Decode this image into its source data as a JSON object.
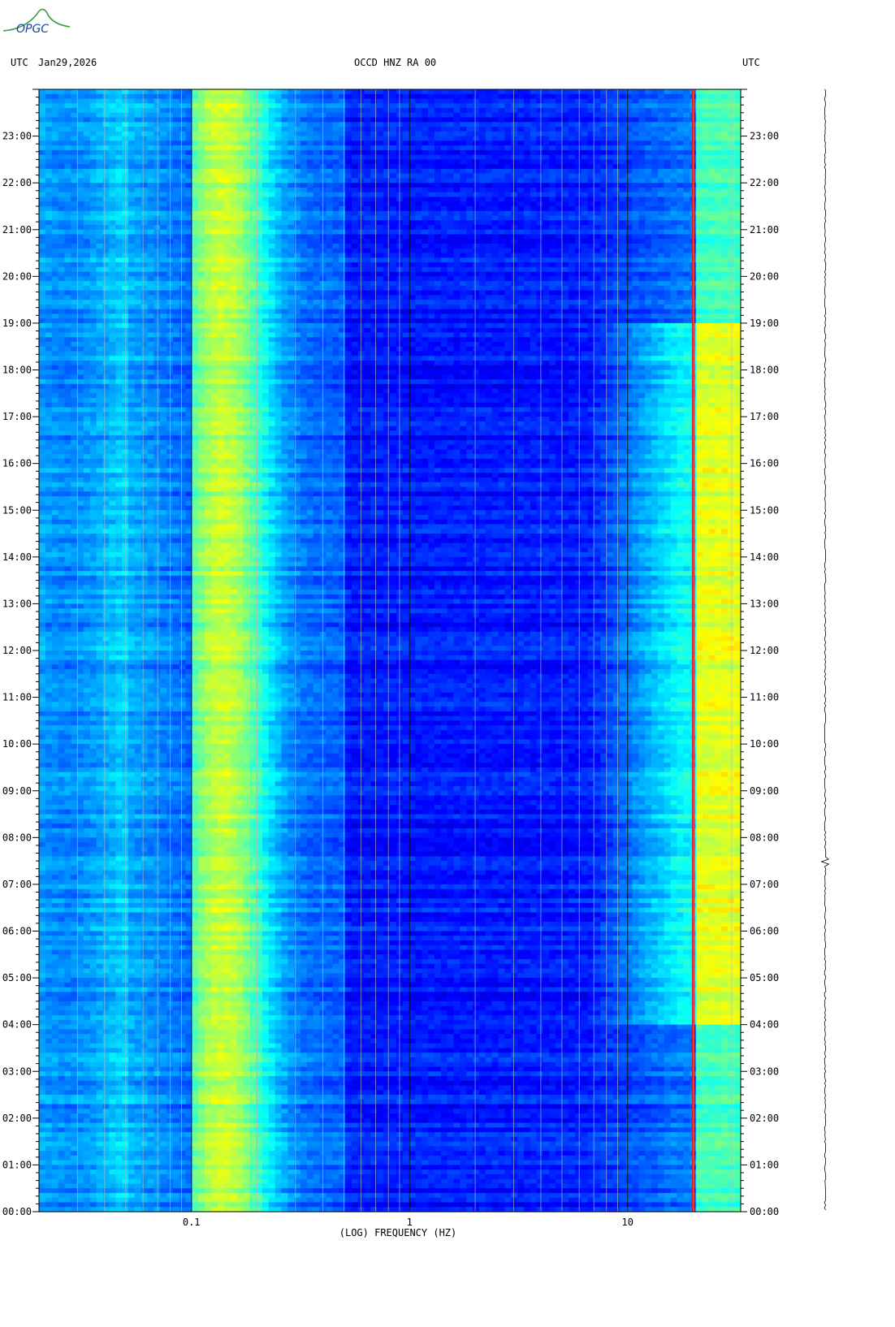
{
  "logo": {
    "text": "OPGC"
  },
  "header": {
    "left_tz": "UTC",
    "date": "Jan29,2026",
    "station": "OCCD HNZ RA 00",
    "right_tz": "UTC"
  },
  "colors": {
    "background_low": "#0a14a8",
    "mid_cyan": "#22e0ff",
    "high_yellow": "#f0f020",
    "peak_red": "#c81010",
    "gridline": "#b8b8b8"
  },
  "chart_data": {
    "type": "heatmap",
    "title": "OCCD HNZ RA 00",
    "xlabel": "(LOG) FREQUENCY (HZ)",
    "ylabel": "UTC",
    "x_scale": "log",
    "xlim": [
      0.02,
      33
    ],
    "x_tick_labels": [
      "0.1",
      "1",
      "10"
    ],
    "x_ticks": [
      0.1,
      1,
      10
    ],
    "ylim": [
      "00:00",
      "24:00"
    ],
    "y_tick_labels": [
      "00:00",
      "01:00",
      "02:00",
      "03:00",
      "04:00",
      "05:00",
      "06:00",
      "07:00",
      "08:00",
      "09:00",
      "10:00",
      "11:00",
      "12:00",
      "13:00",
      "14:00",
      "15:00",
      "16:00",
      "17:00",
      "18:00",
      "19:00",
      "20:00",
      "21:00",
      "22:00",
      "23:00"
    ],
    "colorscale": "blue-cyan-yellow-red (jet)",
    "grid": true,
    "features": [
      {
        "label": "microseism band",
        "freq_range_hz": [
          0.12,
          0.3
        ],
        "level": "cyan-yellow"
      },
      {
        "label": "low-frequency noise",
        "freq_range_hz": [
          0.02,
          0.05
        ],
        "level": "medium blue"
      },
      {
        "label": "persistent line",
        "freq_hz": 20,
        "level": "red"
      },
      {
        "label": "daytime cultural noise",
        "freq_range_hz": [
          8,
          33
        ],
        "time_range": [
          "04:00",
          "19:00"
        ],
        "level": "cyan-yellow-red"
      }
    ]
  }
}
